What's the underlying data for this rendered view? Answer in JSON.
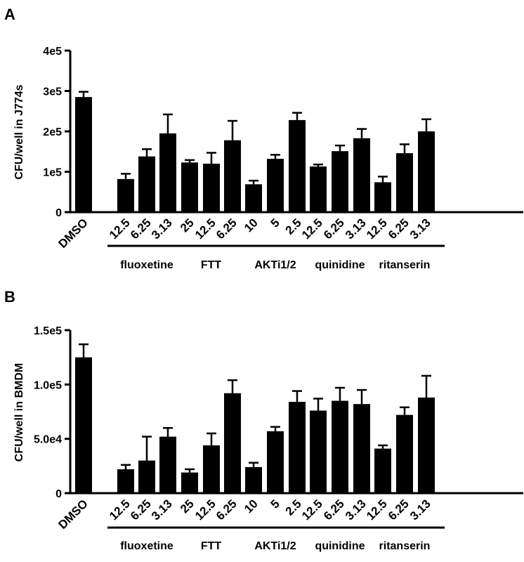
{
  "chart_data": [
    {
      "type": "bar",
      "panel": "A",
      "ylabel": "CFU/well in J774s",
      "ylim": [
        0,
        400000
      ],
      "yticks": [
        0,
        100000,
        200000,
        300000,
        400000
      ],
      "ytick_labels": [
        "0",
        "1e5",
        "2e5",
        "3e5",
        "4e5"
      ],
      "categories": [
        "DMSO",
        "12.5",
        "6.25",
        "3.13",
        "25",
        "12.5",
        "6.25",
        "10",
        "5",
        "2.5",
        "12.5",
        "6.25",
        "3.13",
        "12.5",
        "6.25",
        "3.13"
      ],
      "values": [
        285000,
        82000,
        138000,
        195000,
        123000,
        120000,
        178000,
        69000,
        132000,
        228000,
        113000,
        151000,
        183000,
        74000,
        146000,
        200000
      ],
      "errors": [
        13000,
        13000,
        18000,
        47000,
        6000,
        27000,
        48000,
        9000,
        10000,
        18000,
        5000,
        14000,
        23000,
        14000,
        22000,
        30000
      ],
      "groups": [
        {
          "label": "fluoxetine",
          "start": 1,
          "end": 3
        },
        {
          "label": "FTT",
          "start": 4,
          "end": 6
        },
        {
          "label": "AKTi1/2",
          "start": 7,
          "end": 9
        },
        {
          "label": "quinidine",
          "start": 10,
          "end": 12
        },
        {
          "label": "ritanserin",
          "start": 13,
          "end": 15
        }
      ],
      "bar_color": "#000000",
      "grid": false
    },
    {
      "type": "bar",
      "panel": "B",
      "ylabel": "CFU/well in BMDM",
      "ylim": [
        0,
        150000
      ],
      "yticks": [
        0,
        50000,
        100000,
        150000
      ],
      "ytick_labels": [
        "0",
        "5.0e4",
        "1.0e5",
        "1.5e5"
      ],
      "categories": [
        "DMSO",
        "12.5",
        "6.25",
        "3.13",
        "25",
        "12.5",
        "6.25",
        "10",
        "5",
        "2.5",
        "12.5",
        "6.25",
        "3.13",
        "12.5",
        "6.25",
        "3.13"
      ],
      "values": [
        125000,
        22000,
        30000,
        52000,
        19000,
        44000,
        92000,
        24000,
        57000,
        84000,
        76000,
        85000,
        82000,
        41000,
        72000,
        88000
      ],
      "errors": [
        12000,
        4000,
        22000,
        8000,
        3000,
        11000,
        12000,
        4000,
        4000,
        10000,
        11000,
        12000,
        13000,
        3000,
        7000,
        20000
      ],
      "groups": [
        {
          "label": "fluoxetine",
          "start": 1,
          "end": 3
        },
        {
          "label": "FTT",
          "start": 4,
          "end": 6
        },
        {
          "label": "AKTi1/2",
          "start": 7,
          "end": 9
        },
        {
          "label": "quinidine",
          "start": 10,
          "end": 12
        },
        {
          "label": "ritanserin",
          "start": 13,
          "end": 15
        }
      ],
      "bar_color": "#000000",
      "grid": false
    }
  ]
}
